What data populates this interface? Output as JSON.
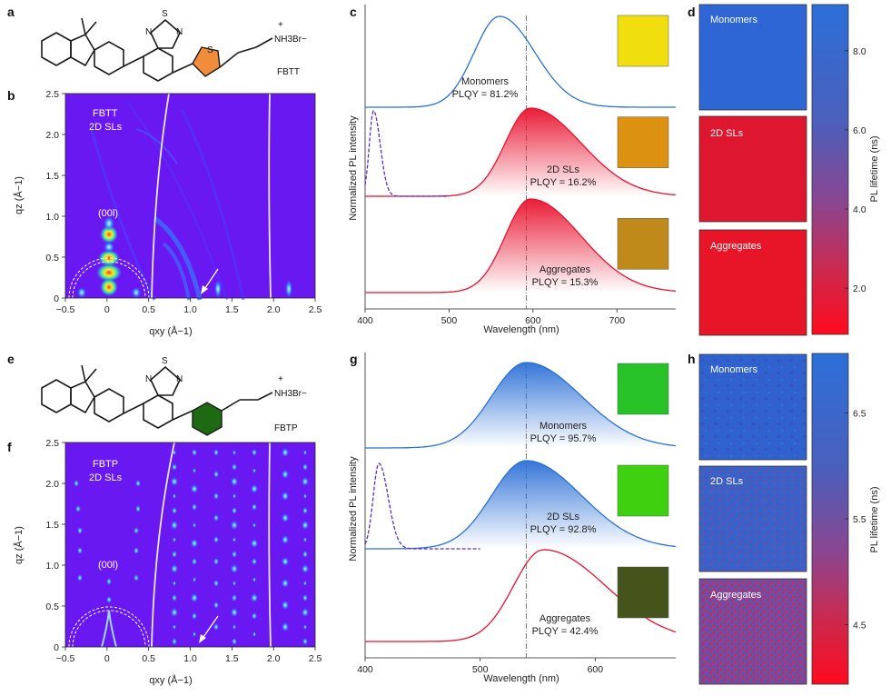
{
  "panels": {
    "a": "a",
    "b": "b",
    "c": "c",
    "d": "d",
    "e": "e",
    "f": "f",
    "g": "g",
    "h": "h"
  },
  "molecules": {
    "top": {
      "name": "FBTT",
      "ammonium": "NH3Br−",
      "s_label": "S",
      "n_label": "N",
      "plus": "+"
    },
    "bottom": {
      "name": "FBTP",
      "ammonium": "NH3Br−",
      "s_label": "S",
      "n_label": "N",
      "plus": "+"
    }
  },
  "giwaxs": {
    "top": {
      "label_line1": "FBTT",
      "label_line2": "2D SLs",
      "peak": "(00l)"
    },
    "bottom": {
      "label_line1": "FBTP",
      "label_line2": "2D SLs",
      "peak": "(00l)"
    },
    "xlabel": "qxy (Å−1)",
    "ylabel": "qz (Å−1)",
    "xticks": [
      "−0.5",
      "0",
      "0.5",
      "1.0",
      "1.5",
      "2.0",
      "2.5"
    ],
    "yticks": [
      "0",
      "0.5",
      "1.0",
      "1.5",
      "2.0",
      "2.5"
    ]
  },
  "chart_data": [
    {
      "type": "line",
      "panel": "c",
      "title": "",
      "xlabel": "Wavelength (nm)",
      "ylabel": "Normalized PL intensity",
      "xlim": [
        400,
        770
      ],
      "xticks": [
        "400",
        "500",
        "600",
        "700"
      ],
      "reference_line_nm": 592,
      "series": [
        {
          "name": "Monomers",
          "plqy_text": "PLQY = 81.2%",
          "peak_nm": 560,
          "fill": "none",
          "color": "#2b6fd6",
          "swatch": "#f0de0e"
        },
        {
          "name": "2D SLs",
          "plqy_text": "PLQY = 16.2%",
          "peak_nm": 597,
          "fill": "red-gradient",
          "color": "#e8112d",
          "swatch": "#dc9210"
        },
        {
          "name": "Aggregates",
          "plqy_text": "PLQY = 15.3%",
          "peak_nm": 597,
          "fill": "red-gradient",
          "color": "#e8112d",
          "swatch": "#c08a1a"
        }
      ],
      "excitation_peak_nm": 410
    },
    {
      "type": "line",
      "panel": "g",
      "title": "",
      "xlabel": "Wavelength (nm)",
      "ylabel": "Normalized PL intensity",
      "xlim": [
        400,
        670
      ],
      "xticks": [
        "400",
        "500",
        "600"
      ],
      "reference_line_nm": 540,
      "series": [
        {
          "name": "Monomers",
          "plqy_text": "PLQY = 95.7%",
          "peak_nm": 540,
          "fill": "blue-gradient",
          "color": "#2b6fd6",
          "swatch": "#27c227"
        },
        {
          "name": "2D SLs",
          "plqy_text": "PLQY = 92.8%",
          "peak_nm": 540,
          "fill": "blue-gradient",
          "color": "#2b6fd6",
          "swatch": "#3ed10f"
        },
        {
          "name": "Aggregates",
          "plqy_text": "PLQY = 42.4%",
          "peak_nm": 555,
          "fill": "none",
          "color": "#e8112d",
          "swatch": "#44541a"
        }
      ],
      "excitation_peak_nm": 412
    }
  ],
  "lifetime": {
    "top": {
      "tiles": [
        "Monomers",
        "2D SLs",
        "Aggregates"
      ],
      "colorbar_label": "PL lifetime (ns)",
      "colorbar_ticks": [
        "8.0",
        "6.0",
        "4.0",
        "2.0"
      ]
    },
    "bottom": {
      "tiles": [
        "Monomers",
        "2D SLs",
        "Aggregates"
      ],
      "colorbar_label": "PL lifetime (ns)",
      "colorbar_ticks": [
        "6.5",
        "5.5",
        "4.5"
      ]
    }
  },
  "colors": {
    "giwaxs_bg": "#6a18f2",
    "blue": "#2b6fd6",
    "red": "#e8112d",
    "thiophene": "#f08c3a",
    "phenyl": "#1e6a12"
  }
}
